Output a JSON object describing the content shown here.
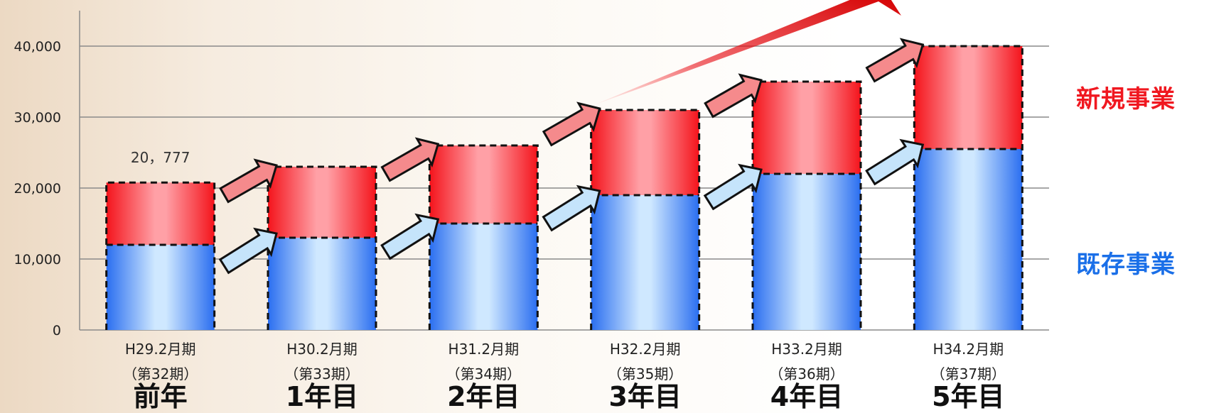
{
  "colors": {
    "new_business": "#f01820",
    "existing_business": "#1a6fe8",
    "grid": "#8a8a8a",
    "axis_text": "#222222"
  },
  "legend": {
    "new_business_label": "新規事業",
    "existing_business_label": "既存事業"
  },
  "chart_data": {
    "type": "bar",
    "stacked": true,
    "ylim": [
      0,
      40000
    ],
    "yticks": [
      "0",
      "10,000",
      "20,000",
      "30,000",
      "40,000"
    ],
    "ytick_values": [
      0,
      10000,
      20000,
      30000,
      40000
    ],
    "grid": true,
    "categories": [
      "H29.2月期",
      "H30.2月期",
      "H31.2月期",
      "H32.2月期",
      "H33.2月期",
      "H34.2月期"
    ],
    "periods": [
      "（第32期）",
      "（第33期）",
      "（第34期）",
      "（第35期）",
      "（第36期）",
      "（第37期）"
    ],
    "year_labels": [
      "前年",
      "1年目",
      "2年目",
      "3年目",
      "4年目",
      "5年目"
    ],
    "series": [
      {
        "name": "既存事業",
        "values": [
          12000,
          13000,
          15000,
          19000,
          22000,
          25500
        ]
      },
      {
        "name": "新規事業",
        "values": [
          8777,
          10000,
          11000,
          12000,
          13000,
          14500
        ]
      }
    ],
    "totals": [
      20777,
      23000,
      26000,
      31000,
      35000,
      40000
    ],
    "annotations": [
      {
        "category": "H29.2月期",
        "text": "20，777"
      }
    ]
  }
}
